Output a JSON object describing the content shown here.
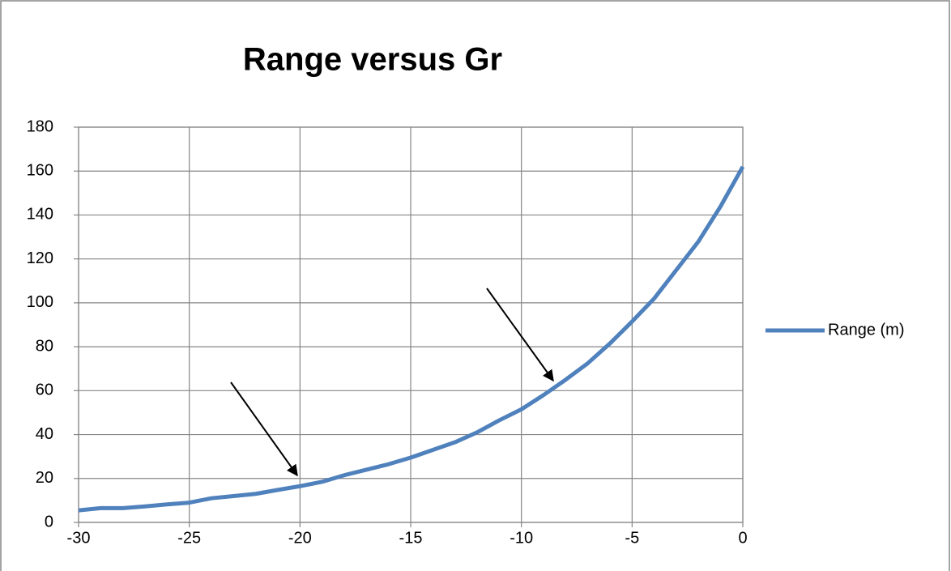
{
  "chart_data": {
    "type": "line",
    "title": "Range versus Gr",
    "x": [
      -30,
      -29,
      -28,
      -27,
      -26,
      -25,
      -24,
      -23,
      -22,
      -21,
      -20,
      -19,
      -18,
      -17,
      -16,
      -15,
      -14,
      -13,
      -12,
      -11,
      -10,
      -9,
      -8,
      -7,
      -6,
      -5,
      -4,
      -3,
      -2,
      -1,
      0
    ],
    "series": [
      {
        "name": "Range (m)",
        "color": "#4f81bd",
        "values": [
          5.5,
          6.5,
          6.5,
          7.3,
          8.2,
          9,
          11,
          12,
          13,
          14.8,
          16.5,
          18.5,
          21.5,
          24,
          26.5,
          29.5,
          33,
          36.5,
          41,
          46.5,
          51.5,
          58,
          65,
          72.5,
          81.5,
          91.5,
          102,
          115,
          128,
          144,
          162
        ]
      }
    ],
    "xlim": [
      -30,
      0
    ],
    "xticks": [
      -30,
      -25,
      -20,
      -15,
      -10,
      -5,
      0
    ],
    "ylim": [
      0,
      180
    ],
    "yticks": [
      0,
      20,
      40,
      60,
      80,
      100,
      120,
      140,
      160,
      180
    ],
    "grid": true,
    "legend": "right"
  }
}
